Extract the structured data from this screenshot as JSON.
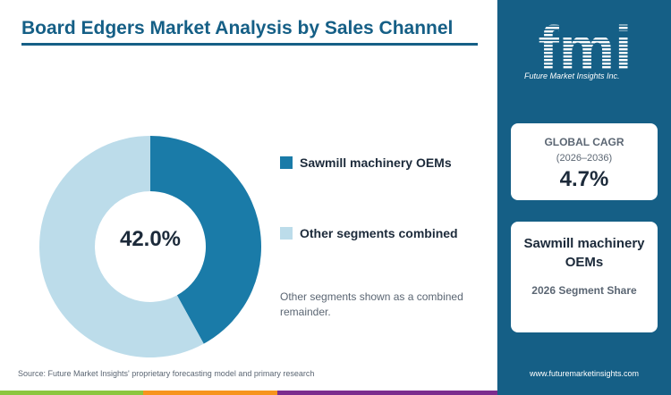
{
  "header": {
    "title": "Board Edgers Market Analysis by Sales Channel"
  },
  "chart_data": {
    "type": "pie",
    "style": "donut",
    "categories": [
      "Sawmill machinery OEMs",
      "Other segments combined"
    ],
    "values": [
      42.0,
      58.0
    ],
    "unit": "%",
    "center_label": "42.0%",
    "colors": [
      "#1a7ba8",
      "#bcdcea"
    ],
    "legend_position": "right"
  },
  "legend": {
    "items": [
      {
        "label": "Sawmill machinery OEMs",
        "color": "#1a7ba8"
      },
      {
        "label": "Other segments combined",
        "color": "#bcdcea"
      }
    ]
  },
  "note": "Other segments shown as a combined remainder.",
  "source": "Source: Future Market Insights' proprietary forecasting model and primary research",
  "brand": {
    "logo_text": "fmi",
    "logo_subtitle": "Future Market Insights Inc.",
    "website": "www.futuremarketinsights.com"
  },
  "cagr_card": {
    "heading": "GLOBAL CAGR",
    "period": "(2026–2036)",
    "value": "4.7%"
  },
  "segment_card": {
    "name": "Sawmill machinery OEMs",
    "label": "2026 Segment Share"
  },
  "colors": {
    "brand_blue": "#155f86",
    "accent_green": "#8cc63f",
    "accent_orange": "#f7941d",
    "accent_purple": "#7b2d8e"
  }
}
